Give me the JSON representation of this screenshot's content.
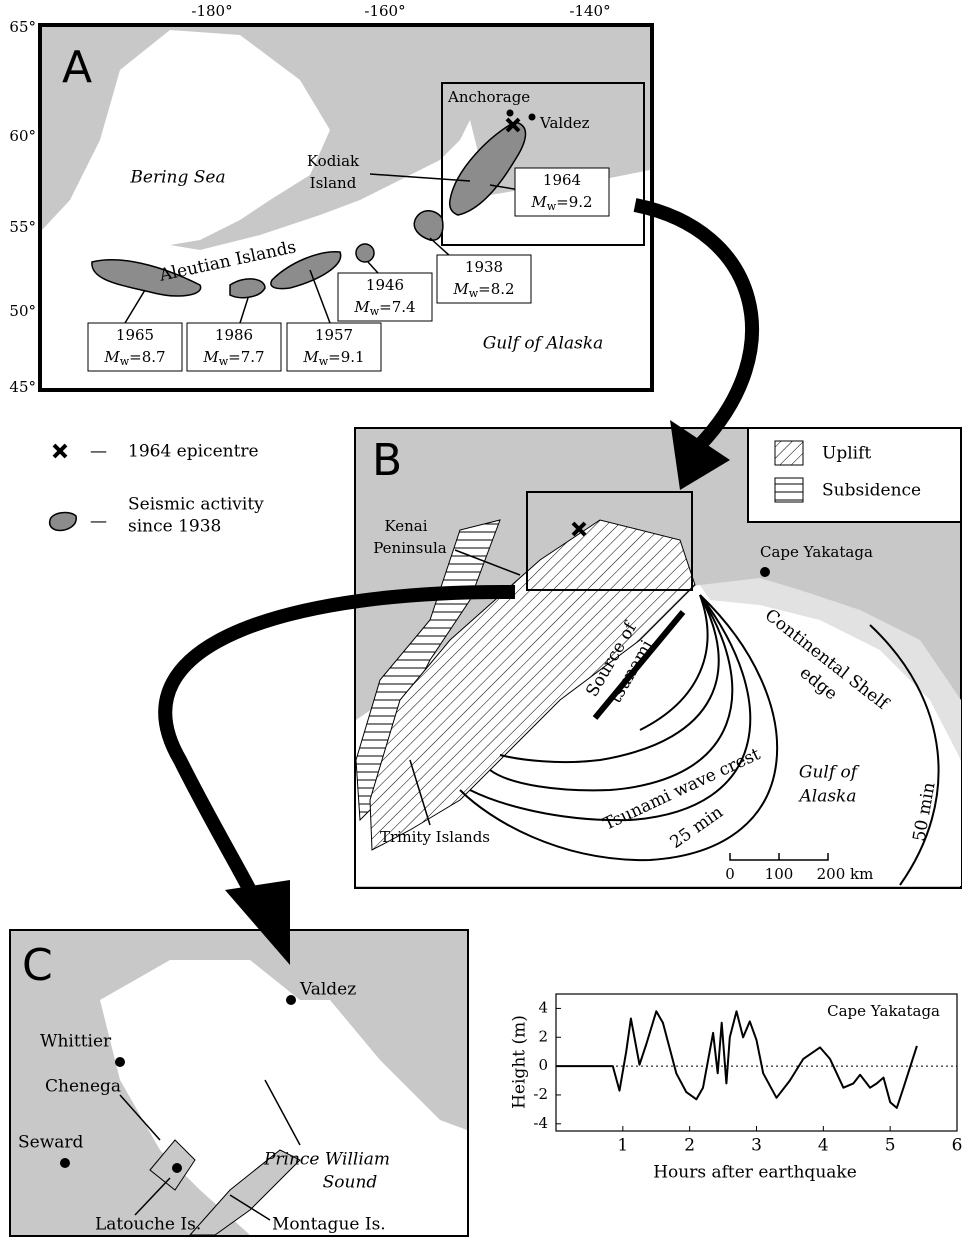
{
  "panel_a": {
    "label": "A",
    "longitude_ticks": [
      "-180°",
      "-160°",
      "-140°"
    ],
    "latitude_ticks": [
      "65°",
      "60°",
      "55°",
      "50°",
      "45°"
    ],
    "bering_sea": "Bering Sea",
    "gulf_of_alaska": "Gulf of Alaska",
    "aleutian_islands": "Aleutian Islands",
    "anchorage": "Anchorage",
    "valdez": "Valdez",
    "kodiak_island": [
      "Kodiak",
      "Island"
    ],
    "magnitude_prefix": {
      "symbol": "M",
      "subscript": "w",
      "equals": "="
    },
    "events": [
      {
        "year": "1965",
        "magnitude": "8.7"
      },
      {
        "year": "1986",
        "magnitude": "7.7"
      },
      {
        "year": "1957",
        "magnitude": "9.1"
      },
      {
        "year": "1946",
        "magnitude": "7.4"
      },
      {
        "year": "1938",
        "magnitude": "8.2"
      },
      {
        "year": "1964",
        "magnitude": "9.2"
      }
    ]
  },
  "legend": {
    "dash": "—",
    "epicentre": "1964 epicentre",
    "seismic": [
      "Seismic activity",
      "since 1938"
    ]
  },
  "panel_b": {
    "label": "B",
    "uplift": "Uplift",
    "subsidence": "Subsidence",
    "kenai_peninsula": [
      "Kenai",
      "Peninsula"
    ],
    "cape_yakataga": "Cape Yakataga",
    "source": [
      "Source of",
      "tsunami"
    ],
    "continental_shelf": [
      "Continental Shelf",
      "edge"
    ],
    "gulf_of_alaska": [
      "Gulf of",
      "Alaska"
    ],
    "wave_crest": "Tsunami wave crest",
    "time_25": "25 min",
    "time_50": "50 min",
    "trinity_islands": "Trinity Islands",
    "scale": [
      "0",
      "100",
      "200 km"
    ]
  },
  "panel_c": {
    "label": "C",
    "valdez": "Valdez",
    "whittier": "Whittier",
    "chenega": "Chenega",
    "seward": "Seward",
    "latouche": "Latouche Is.",
    "montague": "Montague Is.",
    "prince_william_sound": [
      "Prince William",
      "Sound"
    ]
  },
  "chart_data": {
    "type": "line",
    "title": "Cape Yakataga",
    "x_label": "Hours after earthquake",
    "y_label": "Height (m)",
    "x": [
      0,
      0.85,
      0.95,
      1.05,
      1.12,
      1.25,
      1.35,
      1.5,
      1.6,
      1.8,
      1.95,
      2.1,
      2.2,
      2.35,
      2.42,
      2.48,
      2.55,
      2.6,
      2.7,
      2.8,
      2.9,
      3.0,
      3.1,
      3.3,
      3.5,
      3.7,
      3.95,
      4.1,
      4.3,
      4.45,
      4.55,
      4.7,
      4.8,
      4.9,
      5.0,
      5.1,
      5.2,
      5.4
    ],
    "values": [
      0,
      0,
      -1.7,
      1,
      3.3,
      0.1,
      1.5,
      3.8,
      3,
      -0.5,
      -1.8,
      -2.3,
      -1.5,
      2.3,
      -0.5,
      3,
      -1.2,
      2,
      3.8,
      2,
      3.1,
      1.8,
      -0.5,
      -2.2,
      -1,
      0.5,
      1.3,
      0.5,
      -1.5,
      -1.2,
      -0.6,
      -1.5,
      -1.2,
      -0.8,
      -2.5,
      -2.9,
      -1.5,
      1.4
    ],
    "color": "#000000",
    "xlim": [
      0,
      6
    ],
    "xticks": [
      1,
      2,
      3,
      4,
      5,
      6
    ],
    "ylim": [
      -4.5,
      5
    ],
    "yticks": [
      -4,
      -2,
      0,
      2,
      4
    ],
    "baseline": 0
  }
}
